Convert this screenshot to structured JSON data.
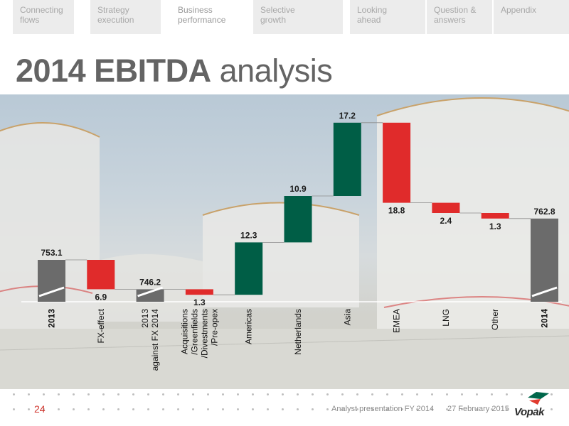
{
  "nav": {
    "tabs": [
      {
        "label": "Connecting\nflows",
        "active": false
      },
      {
        "label": "Strategy\nexecution",
        "active": false
      },
      {
        "label": "Business\nperformance",
        "active": true
      },
      {
        "label": "Selective\ngrowth",
        "active": false
      },
      {
        "label": "Looking\nahead",
        "active": false
      },
      {
        "label": "Question &\nanswers",
        "active": false
      },
      {
        "label": "Appendix",
        "active": false
      }
    ]
  },
  "title": {
    "bold": "2014 EBITDA",
    "light": "analysis"
  },
  "colors": {
    "total": "#6b6b6b",
    "negative": "#e02b2b",
    "positive": "#005e46",
    "accent": "#d0342c"
  },
  "chart_data": {
    "type": "bar",
    "subtype": "waterfall",
    "categories": [
      "2013",
      "FX-effect",
      "2013 against FX 2014",
      "Acquisitions /Greenfields /Divestments /Pre-opex",
      "Americas",
      "Netherlands",
      "Asia",
      "EMEA",
      "LNG",
      "Other",
      "2014"
    ],
    "tick_labels": [
      "2013",
      "FX-effect",
      "2013\nagainst FX 2014",
      "Acquisitions\n/Greenfields\n/Divestments\n/Pre-opex",
      "Americas",
      "Netherlands",
      "Asia",
      "EMEA",
      "LNG",
      "Other",
      "2014"
    ],
    "bold_ticks": [
      true,
      false,
      false,
      false,
      false,
      false,
      false,
      false,
      false,
      false,
      true
    ],
    "bars": [
      {
        "kind": "total",
        "value": 753.1,
        "label": "753.1"
      },
      {
        "kind": "decrease",
        "value": 6.9,
        "label": "6.9"
      },
      {
        "kind": "total",
        "value": 746.2,
        "label": "746.2"
      },
      {
        "kind": "decrease",
        "value": 1.3,
        "label": "1.3"
      },
      {
        "kind": "increase",
        "value": 12.3,
        "label": "12.3"
      },
      {
        "kind": "increase",
        "value": 10.9,
        "label": "10.9"
      },
      {
        "kind": "increase",
        "value": 17.2,
        "label": "17.2"
      },
      {
        "kind": "decrease",
        "value": 18.8,
        "label": "18.8"
      },
      {
        "kind": "decrease",
        "value": 2.4,
        "label": "2.4"
      },
      {
        "kind": "decrease",
        "value": 1.3,
        "label": "1.3"
      },
      {
        "kind": "total",
        "value": 762.8,
        "label": "762.8"
      }
    ],
    "axis_break": true,
    "ylim": [
      735,
      790
    ],
    "grid": false,
    "legend": "none",
    "title": ""
  },
  "footer": {
    "page_number": "24",
    "presentation": "Analyst presentation FY 2014",
    "date": "27 February 2015",
    "logo": "Vopak"
  }
}
